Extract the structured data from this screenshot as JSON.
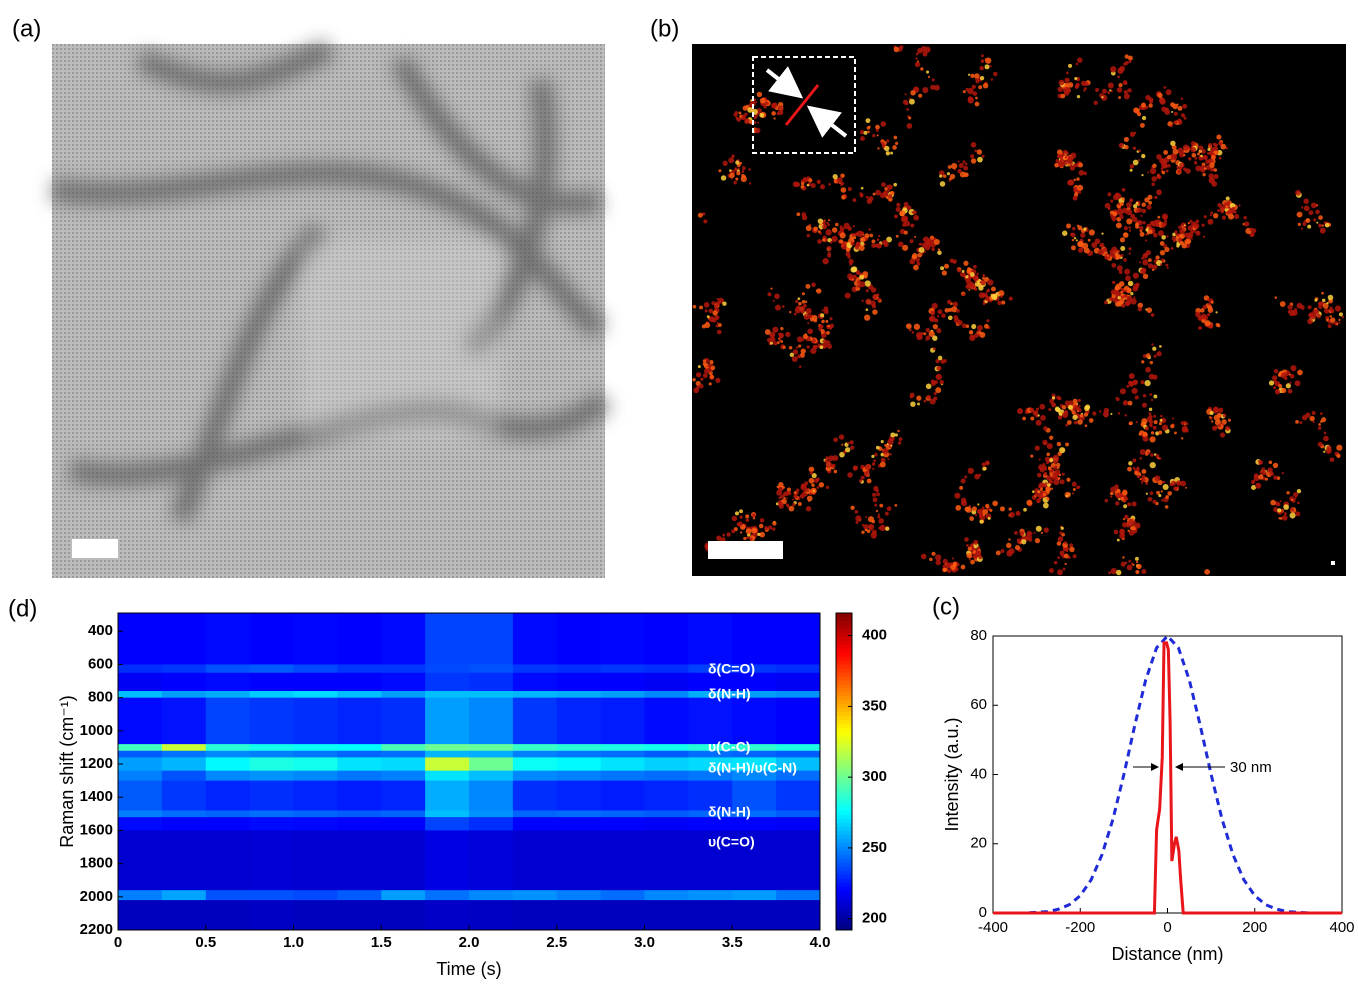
{
  "panel_labels": [
    "(a)",
    "(b)",
    "(d)",
    "(c)"
  ],
  "chart_data": [
    {
      "type": "heatmap",
      "xlabel": "Time (s)",
      "ylabel": "Raman shift (cm⁻¹)",
      "xlim": [
        0,
        4
      ],
      "xticks": [
        0,
        0.5,
        {
          "value": 1,
          "label": "1.0"
        },
        1.5,
        {
          "value": 2,
          "label": "2.0"
        },
        2.5,
        {
          "value": 3,
          "label": "3.0"
        },
        3.5,
        {
          "value": 4,
          "label": "4.0"
        }
      ],
      "ylim": [
        290,
        2200
      ],
      "y_inverted": true,
      "yticks": [
        400,
        600,
        800,
        1000,
        1200,
        1400,
        1600,
        1800,
        2000,
        2200
      ],
      "colormap": "jet",
      "clim": [
        192,
        416
      ],
      "cticks": [
        200,
        250,
        300,
        350,
        400
      ],
      "annotations": [
        "δ(C=O)",
        "δ(N-H)",
        "υ(C-C)",
        "δ(N-H)/υ(C-N)",
        "δ(N-H)",
        "υ(C=O)"
      ],
      "x_edges": [
        0,
        0.25,
        0.5,
        0.75,
        1,
        1.25,
        1.5,
        1.75,
        2,
        2.25,
        2.5,
        2.75,
        3,
        3.25,
        3.5,
        3.75,
        4
      ],
      "y_edges": [
        290,
        600,
        650,
        760,
        800,
        1080,
        1120,
        1160,
        1240,
        1300,
        1480,
        1520,
        1600,
        1960,
        2020,
        2200
      ],
      "values": [
        [
          220,
          220,
          222,
          220,
          221,
          220,
          222,
          235,
          235,
          222,
          220,
          221,
          220,
          222,
          220,
          220
        ],
        [
          230,
          232,
          238,
          240,
          236,
          232,
          232,
          236,
          238,
          232,
          230,
          232,
          230,
          234,
          232,
          230
        ],
        [
          218,
          220,
          222,
          220,
          220,
          220,
          222,
          232,
          230,
          222,
          220,
          220,
          218,
          220,
          220,
          218
        ],
        [
          262,
          255,
          258,
          265,
          268,
          262,
          255,
          262,
          262,
          260,
          258,
          255,
          250,
          258,
          255,
          252
        ],
        [
          222,
          224,
          235,
          232,
          230,
          228,
          230,
          255,
          250,
          232,
          228,
          226,
          222,
          224,
          222,
          220
        ],
        [
          290,
          320,
          285,
          280,
          278,
          276,
          292,
          300,
          298,
          288,
          285,
          282,
          280,
          284,
          286,
          282
        ],
        [
          240,
          245,
          250,
          248,
          246,
          242,
          244,
          260,
          258,
          248,
          246,
          244,
          240,
          244,
          242,
          240
        ],
        [
          255,
          260,
          275,
          282,
          280,
          270,
          268,
          320,
          300,
          278,
          275,
          270,
          266,
          268,
          270,
          262
        ],
        [
          248,
          238,
          250,
          252,
          250,
          246,
          248,
          270,
          262,
          250,
          248,
          246,
          244,
          246,
          250,
          244
        ],
        [
          240,
          232,
          228,
          230,
          228,
          226,
          228,
          258,
          250,
          230,
          228,
          226,
          228,
          230,
          238,
          232
        ],
        [
          248,
          244,
          242,
          244,
          242,
          240,
          242,
          262,
          252,
          242,
          244,
          242,
          240,
          242,
          244,
          240
        ],
        [
          222,
          220,
          220,
          222,
          221,
          220,
          220,
          235,
          230,
          220,
          220,
          220,
          218,
          220,
          220,
          218
        ],
        [
          210,
          210,
          210,
          211,
          210,
          210,
          210,
          214,
          212,
          210,
          210,
          210,
          210,
          210,
          210,
          210
        ],
        [
          248,
          256,
          238,
          238,
          236,
          240,
          255,
          245,
          250,
          252,
          248,
          244,
          250,
          252,
          254,
          246
        ],
        [
          206,
          206,
          206,
          207,
          206,
          206,
          206,
          208,
          207,
          206,
          206,
          206,
          206,
          206,
          206,
          206
        ]
      ]
    },
    {
      "type": "line",
      "xlabel": "Distance (nm)",
      "ylabel": "Intensity (a.u.)",
      "annotation": "30 nm",
      "xlim": [
        -400,
        400
      ],
      "xticks": [
        -400,
        -200,
        0,
        200,
        400
      ],
      "ylim": [
        0,
        80
      ],
      "yticks": [
        0,
        20,
        40,
        60,
        80
      ],
      "series": [
        {
          "color": "#1f2bd6",
          "dash": true,
          "x": [
            -400,
            -325,
            -300,
            -275,
            -250,
            -225,
            -200,
            -175,
            -150,
            -125,
            -100,
            -75,
            -50,
            -25,
            0,
            25,
            50,
            75,
            100,
            125,
            150,
            175,
            200,
            225,
            250,
            275,
            300,
            325,
            400
          ],
          "values": [
            0,
            0,
            0.2,
            0.4,
            1.1,
            2.4,
            5,
            9.6,
            16.9,
            27.1,
            40,
            54.2,
            67.3,
            76.6,
            80,
            76.6,
            67.3,
            54.2,
            40,
            27.1,
            16.9,
            9.6,
            5,
            2.4,
            1.1,
            0.4,
            0.2,
            0,
            0
          ]
        },
        {
          "color": "#e8161b",
          "dash": false,
          "x": [
            -400,
            -30,
            -25,
            -18,
            -12,
            -8,
            -2,
            2,
            6,
            10,
            16,
            20,
            26,
            30,
            36,
            400
          ],
          "values": [
            0,
            0,
            24,
            30,
            45,
            78,
            78,
            76,
            55,
            15,
            20,
            22,
            18,
            10,
            0,
            0
          ]
        }
      ]
    }
  ]
}
